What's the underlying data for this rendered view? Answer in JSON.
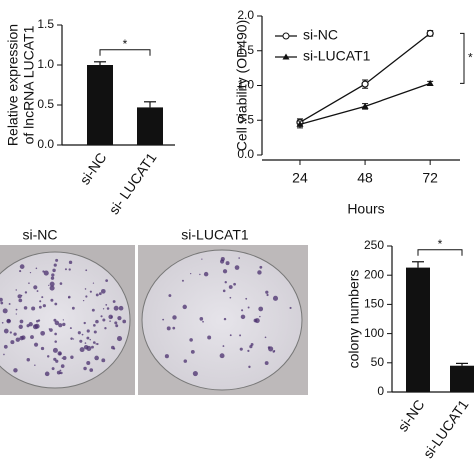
{
  "chart_data": [
    {
      "type": "bar",
      "y_label": [
        "Relative expression",
        "of lncRNA LUCAT1"
      ],
      "categories": [
        "si-NC",
        "si- LUCAT1"
      ],
      "values": [
        1.0,
        0.47
      ],
      "errors": [
        0.04,
        0.07
      ],
      "color": "#111111",
      "ylim": [
        0,
        1.5
      ],
      "yticks": [
        {
          "value": 0,
          "label": "0.0"
        },
        0.5,
        {
          "value": 1,
          "label": "1.0"
        },
        1.5
      ],
      "annotation": "*"
    },
    {
      "type": "line",
      "y_label": "Cell viability (OD490)",
      "x_label": "Hours",
      "x": [
        24,
        48,
        72
      ],
      "xlim": [
        10,
        83
      ],
      "xticks": [
        24,
        48,
        72
      ],
      "ylim": [
        0,
        2
      ],
      "yticks": [
        {
          "value": 0,
          "label": "0.0"
        },
        0.5,
        {
          "value": 1,
          "label": "1.0"
        },
        1.5,
        {
          "value": 2,
          "label": "2.0"
        }
      ],
      "series": [
        {
          "name": "si-NC",
          "color": "#111111",
          "marker": "open-circle",
          "values": [
            0.47,
            1.02,
            1.75
          ],
          "errors": [
            0.05,
            0.06,
            0.04
          ]
        },
        {
          "name": "si-LUCAT1",
          "color": "#111111",
          "marker": "triangle",
          "values": [
            0.44,
            0.7,
            1.03
          ],
          "errors": [
            0.05,
            0.04,
            0.03
          ]
        }
      ],
      "annotation": "*"
    },
    {
      "type": "bar",
      "y_label": "colony numbers",
      "categories": [
        "si-NC",
        "si-LUCAT1"
      ],
      "values": [
        213,
        45
      ],
      "errors": [
        10,
        4
      ],
      "color": "#111111",
      "ylim": [
        0,
        250
      ],
      "yticks": [
        0,
        50,
        100,
        150,
        200,
        250
      ],
      "annotation": "*"
    }
  ],
  "photos": {
    "labels": [
      "si-NC",
      "si-LUCAT1"
    ]
  }
}
